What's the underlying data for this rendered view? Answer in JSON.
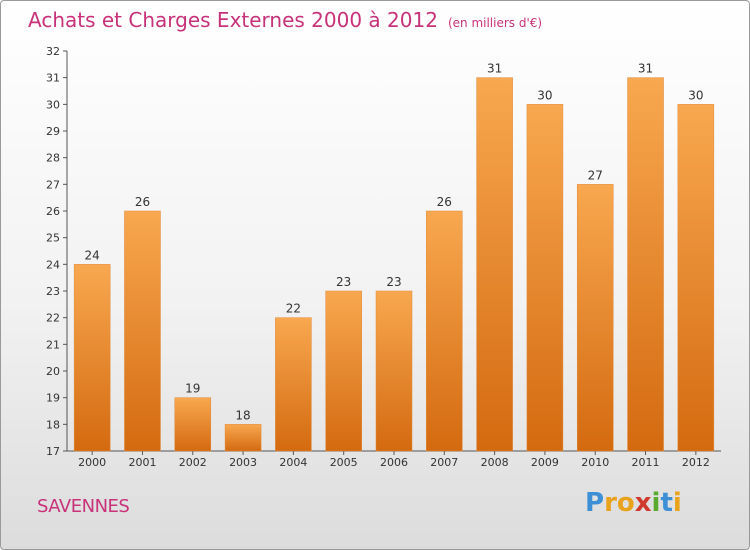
{
  "title": "Achats et Charges Externes 2000 à 2012",
  "unit": "(en milliers d'€)",
  "city": "SAVENNES",
  "logo": {
    "letters": [
      "P",
      "r",
      "o",
      "x",
      "i",
      "t",
      "i"
    ],
    "colors": [
      "#3d8fd6",
      "#e8a21c",
      "#e8a21c",
      "#d03a2c",
      "#5aaa2e",
      "#3d8fd6",
      "#e8a21c"
    ]
  },
  "colors": {
    "bar": "#f08c2c",
    "text": "#c8327a"
  },
  "chart_data": {
    "type": "bar",
    "categories": [
      "2000",
      "2001",
      "2002",
      "2003",
      "2004",
      "2005",
      "2006",
      "2007",
      "2008",
      "2009",
      "2010",
      "2011",
      "2012"
    ],
    "values": [
      24,
      26,
      19,
      18,
      22,
      23,
      23,
      26,
      31,
      30,
      27,
      31,
      30
    ],
    "title": "Achats et Charges Externes 2000 à 2012",
    "ylim": [
      17,
      32
    ],
    "yticks": [
      "17",
      "18",
      "19",
      "20",
      "21",
      "22",
      "23",
      "24",
      "25",
      "26",
      "27",
      "28",
      "29",
      "30",
      "31",
      "32"
    ],
    "grid": false
  }
}
